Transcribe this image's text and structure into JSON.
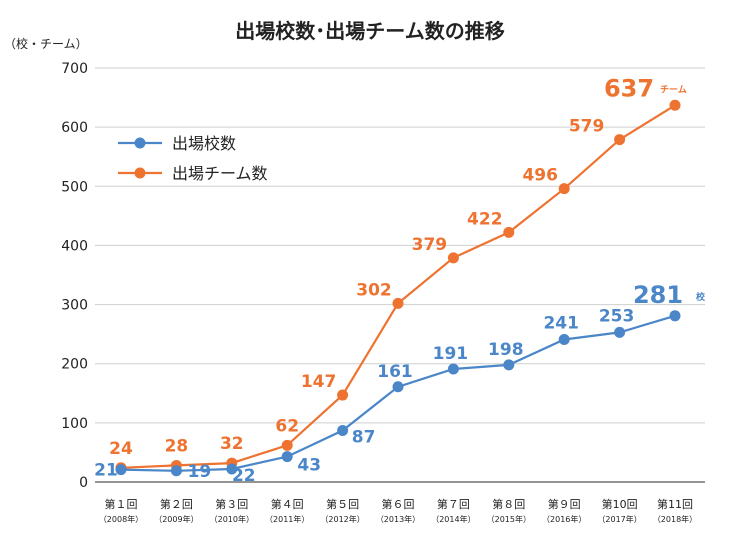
{
  "chart_data": {
    "type": "line",
    "title": "出場校数･出場チーム数の推移",
    "ylabel": "（校・チーム）",
    "ylim": [
      0,
      700
    ],
    "yticks": [
      0,
      100,
      200,
      300,
      400,
      500,
      600,
      700
    ],
    "grid": true,
    "legend_position": "top-left",
    "categories": [
      "第１回",
      "第２回",
      "第３回",
      "第４回",
      "第５回",
      "第６回",
      "第７回",
      "第８回",
      "第９回",
      "第10回",
      "第11回"
    ],
    "category_years": [
      "（2008年）",
      "（2009年）",
      "（2010年）",
      "（2011年）",
      "（2012年）",
      "（2013年）",
      "（2014年）",
      "（2015年）",
      "（2016年）",
      "（2017年）",
      "（2018年）"
    ],
    "series": [
      {
        "name": "出場校数",
        "color": "#4a86c8",
        "values": [
          21,
          19,
          22,
          43,
          87,
          161,
          191,
          198,
          241,
          253,
          281
        ],
        "last_unit": "校"
      },
      {
        "name": "出場チーム数",
        "color": "#ee7330",
        "values": [
          24,
          28,
          32,
          62,
          147,
          302,
          379,
          422,
          496,
          579,
          637
        ],
        "last_unit": "チーム"
      }
    ]
  }
}
